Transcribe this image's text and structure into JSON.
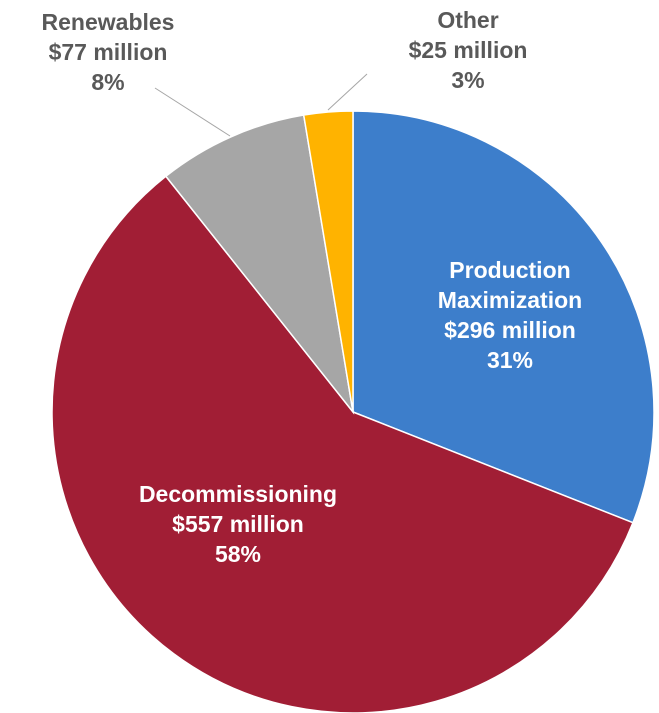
{
  "chart_data": {
    "type": "pie",
    "start_angle_deg": 0,
    "direction": "clockwise",
    "slices": [
      {
        "name": "Production Maximization",
        "value": 296,
        "value_label": "$296 million",
        "percent_label": "31%",
        "color": "#3d7ecb",
        "label_lines": [
          "Production",
          "Maximization"
        ],
        "label_placement": "inside"
      },
      {
        "name": "Decommissioning",
        "value": 557,
        "value_label": "$557 million",
        "percent_label": "58%",
        "color": "#a11e35",
        "label_lines": [
          "Decommissioning"
        ],
        "label_placement": "inside"
      },
      {
        "name": "Renewables",
        "value": 77,
        "value_label": "$77 million",
        "percent_label": "8%",
        "color": "#a6a6a6",
        "label_lines": [
          "Renewables"
        ],
        "label_placement": "outside"
      },
      {
        "name": "Other",
        "value": 25,
        "value_label": "$25 million",
        "percent_label": "3%",
        "color": "#ffb300",
        "label_lines": [
          "Other"
        ],
        "label_placement": "outside"
      }
    ]
  }
}
